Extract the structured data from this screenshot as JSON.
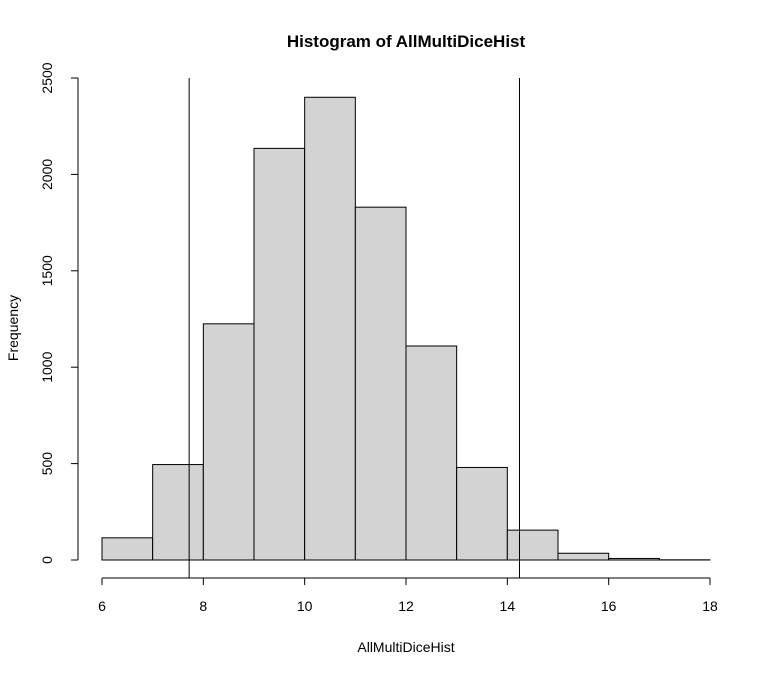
{
  "chart_data": {
    "type": "bar",
    "title": "Histogram of AllMultiDiceHist",
    "xlabel": "AllMultiDiceHist",
    "ylabel": "Frequency",
    "bins": [
      {
        "start": 6,
        "end": 7,
        "value": 115
      },
      {
        "start": 7,
        "end": 8,
        "value": 495
      },
      {
        "start": 8,
        "end": 9,
        "value": 1225
      },
      {
        "start": 9,
        "end": 10,
        "value": 2135
      },
      {
        "start": 10,
        "end": 11,
        "value": 2400
      },
      {
        "start": 11,
        "end": 12,
        "value": 1830
      },
      {
        "start": 12,
        "end": 13,
        "value": 1110
      },
      {
        "start": 13,
        "end": 14,
        "value": 480
      },
      {
        "start": 14,
        "end": 15,
        "value": 155
      },
      {
        "start": 15,
        "end": 16,
        "value": 35
      },
      {
        "start": 16,
        "end": 17,
        "value": 8
      },
      {
        "start": 17,
        "end": 18,
        "value": 1
      }
    ],
    "xlim": [
      6,
      18
    ],
    "ylim": [
      0,
      2500
    ],
    "xticks": [
      6,
      8,
      10,
      12,
      14,
      16,
      18
    ],
    "yticks": [
      0,
      500,
      1000,
      1500,
      2000,
      2500
    ],
    "vlines": [
      7.72,
      14.24
    ],
    "grid": false,
    "legend": "none"
  }
}
